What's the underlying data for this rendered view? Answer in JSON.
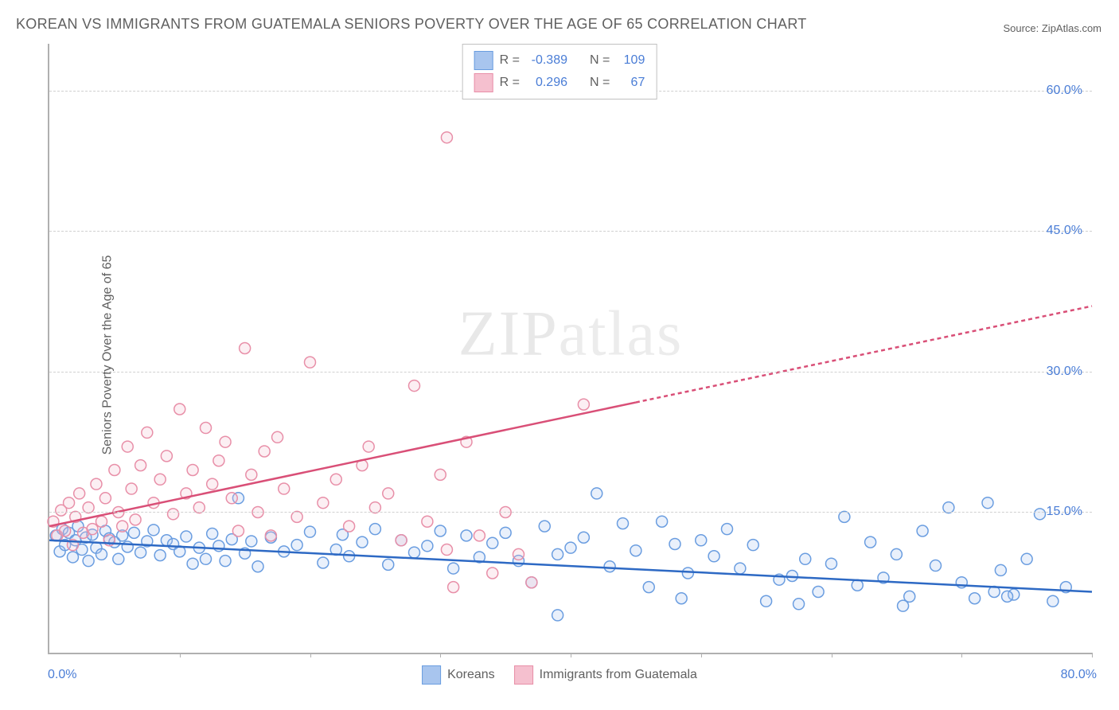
{
  "title": "KOREAN VS IMMIGRANTS FROM GUATEMALA SENIORS POVERTY OVER THE AGE OF 65 CORRELATION CHART",
  "source": "Source: ZipAtlas.com",
  "y_axis_label": "Seniors Poverty Over the Age of 65",
  "watermark_a": "ZIP",
  "watermark_b": "atlas",
  "chart": {
    "type": "scatter",
    "background_color": "#ffffff",
    "grid_color": "#d0d0d0",
    "axis_color": "#b0b0b0",
    "tick_label_color": "#4a7dd6",
    "label_fontsize": 16,
    "title_fontsize": 18,
    "xlim": [
      0,
      80
    ],
    "ylim": [
      0,
      65
    ],
    "x_ticks": [
      0,
      10,
      20,
      30,
      40,
      50,
      60,
      70,
      80
    ],
    "y_ticks": [
      15,
      30,
      45,
      60
    ],
    "y_tick_labels": [
      "15.0%",
      "30.0%",
      "45.0%",
      "60.0%"
    ],
    "x_origin_label": "0.0%",
    "x_max_label": "80.0%",
    "marker_radius": 7,
    "marker_fill_opacity": 0.25,
    "marker_stroke_width": 1.5,
    "trend_line_width": 2.5,
    "trend_dash_extension": "5,4"
  },
  "stats": {
    "series1": {
      "r_label": "R =",
      "r_value": "-0.389",
      "n_label": "N =",
      "n_value": "109"
    },
    "series2": {
      "r_label": "R =",
      "r_value": "0.296",
      "n_label": "N =",
      "n_value": "67"
    }
  },
  "series": [
    {
      "name": "Koreans",
      "color_fill": "#a8c5ee",
      "color_stroke": "#6a9de0",
      "trend_color": "#2d69c4",
      "trend": {
        "x1": 0,
        "y1": 12.0,
        "x2": 80,
        "y2": 6.5,
        "dash_from_x": null
      },
      "points": [
        [
          0.5,
          12.5
        ],
        [
          0.8,
          10.8
        ],
        [
          1.0,
          13.2
        ],
        [
          1.2,
          11.5
        ],
        [
          1.5,
          12.8
        ],
        [
          1.8,
          10.2
        ],
        [
          2.0,
          12.0
        ],
        [
          2.2,
          13.5
        ],
        [
          2.5,
          11.0
        ],
        [
          2.8,
          12.3
        ],
        [
          3.0,
          9.8
        ],
        [
          3.3,
          12.6
        ],
        [
          3.6,
          11.2
        ],
        [
          4.0,
          10.5
        ],
        [
          4.3,
          13.0
        ],
        [
          4.6,
          12.2
        ],
        [
          5.0,
          11.8
        ],
        [
          5.3,
          10.0
        ],
        [
          5.6,
          12.5
        ],
        [
          6.0,
          11.3
        ],
        [
          6.5,
          12.8
        ],
        [
          7.0,
          10.7
        ],
        [
          7.5,
          11.9
        ],
        [
          8.0,
          13.1
        ],
        [
          8.5,
          10.4
        ],
        [
          9.0,
          12.0
        ],
        [
          9.5,
          11.6
        ],
        [
          10.0,
          10.8
        ],
        [
          10.5,
          12.4
        ],
        [
          11.0,
          9.5
        ],
        [
          11.5,
          11.2
        ],
        [
          12.0,
          10.0
        ],
        [
          12.5,
          12.7
        ],
        [
          13.0,
          11.4
        ],
        [
          13.5,
          9.8
        ],
        [
          14.0,
          12.1
        ],
        [
          14.5,
          16.5
        ],
        [
          15.0,
          10.6
        ],
        [
          15.5,
          11.9
        ],
        [
          16.0,
          9.2
        ],
        [
          17.0,
          12.3
        ],
        [
          18.0,
          10.8
        ],
        [
          19.0,
          11.5
        ],
        [
          20.0,
          12.9
        ],
        [
          21.0,
          9.6
        ],
        [
          22.0,
          11.0
        ],
        [
          22.5,
          12.6
        ],
        [
          23.0,
          10.3
        ],
        [
          24.0,
          11.8
        ],
        [
          25.0,
          13.2
        ],
        [
          26.0,
          9.4
        ],
        [
          27.0,
          12.0
        ],
        [
          28.0,
          10.7
        ],
        [
          29.0,
          11.4
        ],
        [
          30.0,
          13.0
        ],
        [
          31.0,
          9.0
        ],
        [
          32.0,
          12.5
        ],
        [
          33.0,
          10.2
        ],
        [
          34.0,
          11.7
        ],
        [
          35.0,
          12.8
        ],
        [
          36.0,
          9.8
        ],
        [
          37.0,
          7.5
        ],
        [
          38.0,
          13.5
        ],
        [
          39.0,
          10.5
        ],
        [
          40.0,
          11.2
        ],
        [
          41.0,
          12.3
        ],
        [
          42.0,
          17.0
        ],
        [
          43.0,
          9.2
        ],
        [
          44.0,
          13.8
        ],
        [
          45.0,
          10.9
        ],
        [
          46.0,
          7.0
        ],
        [
          47.0,
          14.0
        ],
        [
          48.0,
          11.6
        ],
        [
          49.0,
          8.5
        ],
        [
          50.0,
          12.0
        ],
        [
          51.0,
          10.3
        ],
        [
          52.0,
          13.2
        ],
        [
          53.0,
          9.0
        ],
        [
          54.0,
          11.5
        ],
        [
          55.0,
          5.5
        ],
        [
          56.0,
          7.8
        ],
        [
          57.0,
          8.2
        ],
        [
          58.0,
          10.0
        ],
        [
          59.0,
          6.5
        ],
        [
          60.0,
          9.5
        ],
        [
          61.0,
          14.5
        ],
        [
          62.0,
          7.2
        ],
        [
          63.0,
          11.8
        ],
        [
          64.0,
          8.0
        ],
        [
          65.0,
          10.5
        ],
        [
          66.0,
          6.0
        ],
        [
          67.0,
          13.0
        ],
        [
          68.0,
          9.3
        ],
        [
          69.0,
          15.5
        ],
        [
          70.0,
          7.5
        ],
        [
          71.0,
          5.8
        ],
        [
          72.0,
          16.0
        ],
        [
          73.0,
          8.8
        ],
        [
          74.0,
          6.2
        ],
        [
          75.0,
          10.0
        ],
        [
          76.0,
          14.8
        ],
        [
          77.0,
          5.5
        ],
        [
          78.0,
          7.0
        ],
        [
          72.5,
          6.5
        ],
        [
          73.5,
          6.0
        ],
        [
          65.5,
          5.0
        ],
        [
          57.5,
          5.2
        ],
        [
          48.5,
          5.8
        ],
        [
          39.0,
          4.0
        ]
      ]
    },
    {
      "name": "Immigrants from Guatemala",
      "color_fill": "#f5c0cf",
      "color_stroke": "#e88fa8",
      "trend_color": "#d94f77",
      "trend": {
        "x1": 0,
        "y1": 13.5,
        "x2": 80,
        "y2": 37.0,
        "dash_from_x": 45
      },
      "points": [
        [
          0.3,
          14.0
        ],
        [
          0.6,
          12.5
        ],
        [
          0.9,
          15.2
        ],
        [
          1.2,
          13.0
        ],
        [
          1.5,
          16.0
        ],
        [
          1.8,
          11.5
        ],
        [
          2.0,
          14.5
        ],
        [
          2.3,
          17.0
        ],
        [
          2.6,
          12.8
        ],
        [
          3.0,
          15.5
        ],
        [
          3.3,
          13.2
        ],
        [
          3.6,
          18.0
        ],
        [
          4.0,
          14.0
        ],
        [
          4.3,
          16.5
        ],
        [
          4.6,
          12.0
        ],
        [
          5.0,
          19.5
        ],
        [
          5.3,
          15.0
        ],
        [
          5.6,
          13.5
        ],
        [
          6.0,
          22.0
        ],
        [
          6.3,
          17.5
        ],
        [
          6.6,
          14.2
        ],
        [
          7.0,
          20.0
        ],
        [
          7.5,
          23.5
        ],
        [
          8.0,
          16.0
        ],
        [
          8.5,
          18.5
        ],
        [
          9.0,
          21.0
        ],
        [
          9.5,
          14.8
        ],
        [
          10.0,
          26.0
        ],
        [
          10.5,
          17.0
        ],
        [
          11.0,
          19.5
        ],
        [
          11.5,
          15.5
        ],
        [
          12.0,
          24.0
        ],
        [
          12.5,
          18.0
        ],
        [
          13.0,
          20.5
        ],
        [
          13.5,
          22.5
        ],
        [
          14.0,
          16.5
        ],
        [
          14.5,
          13.0
        ],
        [
          15.0,
          32.5
        ],
        [
          15.5,
          19.0
        ],
        [
          16.0,
          15.0
        ],
        [
          16.5,
          21.5
        ],
        [
          17.0,
          12.5
        ],
        [
          17.5,
          23.0
        ],
        [
          18.0,
          17.5
        ],
        [
          19.0,
          14.5
        ],
        [
          20.0,
          31.0
        ],
        [
          21.0,
          16.0
        ],
        [
          22.0,
          18.5
        ],
        [
          23.0,
          13.5
        ],
        [
          24.0,
          20.0
        ],
        [
          24.5,
          22.0
        ],
        [
          25.0,
          15.5
        ],
        [
          26.0,
          17.0
        ],
        [
          27.0,
          12.0
        ],
        [
          28.0,
          28.5
        ],
        [
          29.0,
          14.0
        ],
        [
          30.0,
          19.0
        ],
        [
          30.5,
          11.0
        ],
        [
          31.0,
          7.0
        ],
        [
          32.0,
          22.5
        ],
        [
          33.0,
          12.5
        ],
        [
          34.0,
          8.5
        ],
        [
          35.0,
          15.0
        ],
        [
          36.0,
          10.5
        ],
        [
          37.0,
          7.5
        ],
        [
          30.5,
          55.0
        ],
        [
          41.0,
          26.5
        ]
      ]
    }
  ],
  "legend": {
    "series1_label": "Koreans",
    "series2_label": "Immigrants from Guatemala"
  }
}
